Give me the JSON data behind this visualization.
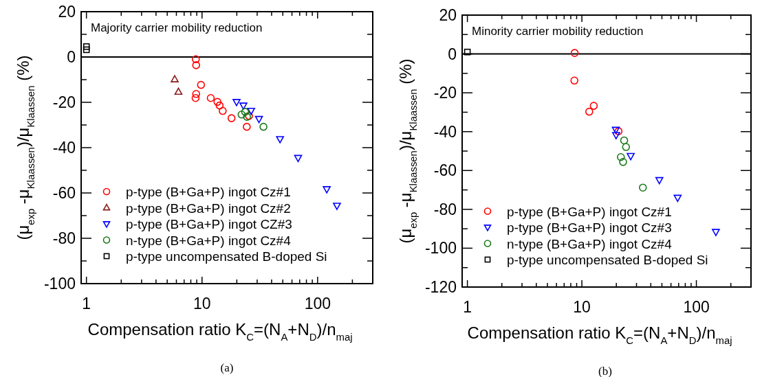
{
  "chart_data": [
    {
      "type": "scatter",
      "xlabel": "Compensation ratio K$_{C}$=(N$_{A}$+N$_{D}$)/n$_{maj}$",
      "ylabel": "(μ$_{exp}$ -μ$_{Klaassen}$)/μ$_{Klaassen}$ (%)",
      "annotations": [
        "Majority carrier mobility reduction",
        "(a)"
      ],
      "log": "x",
      "xlim": [
        0.9,
        300
      ],
      "ylim": [
        -100,
        20
      ],
      "xticks": [
        1,
        {
          "value": 2,
          "label": null
        },
        {
          "value": 3,
          "label": null
        },
        {
          "value": 4,
          "label": null
        },
        {
          "value": 5,
          "label": null
        },
        {
          "value": 6,
          "label": null
        },
        {
          "value": 7,
          "label": null
        },
        {
          "value": 8,
          "label": null
        },
        {
          "value": 9,
          "label": null
        },
        10,
        {
          "value": 20,
          "label": null
        },
        {
          "value": 30,
          "label": null
        },
        {
          "value": 40,
          "label": null
        },
        {
          "value": 50,
          "label": null
        },
        {
          "value": 60,
          "label": null
        },
        {
          "value": 70,
          "label": null
        },
        {
          "value": 80,
          "label": null
        },
        {
          "value": 90,
          "label": null
        },
        100,
        {
          "value": 200,
          "label": null
        }
      ],
      "yticks": [
        -100,
        {
          "value": -90,
          "label": null
        },
        -80,
        {
          "value": -70,
          "label": null
        },
        -60,
        {
          "value": -50,
          "label": null
        },
        -40,
        {
          "value": -30,
          "label": null
        },
        -20,
        {
          "value": -10,
          "label": null
        },
        0,
        {
          "value": 10,
          "label": null
        },
        20
      ],
      "ref_lines": [
        {
          "axis": "y",
          "value": 0,
          "color": "#000000"
        }
      ],
      "legend": "bottom left",
      "grid": false,
      "series": [
        {
          "name": "p-type (B+Ga+P) ingot Cz#1",
          "color": "#ff0000",
          "marker": "circle",
          "x": [
            8.84,
            8.9,
            9.8,
            8.9,
            8.8,
            11.9,
            13.6,
            14.2,
            15.1,
            18.0,
            24.4,
            25.5
          ],
          "values": [
            -1.0,
            -3.6,
            -12.3,
            -16.3,
            -18.1,
            -18.1,
            -19.8,
            -21.4,
            -23.8,
            -27.0,
            -30.8,
            -26.0
          ]
        },
        {
          "name": "p-type (B+Ga+P) ingot Cz#2",
          "color": "#8b1a1a",
          "marker": "triangle",
          "x": [
            5.8,
            6.25
          ],
          "values": [
            -9.9,
            -15.4
          ]
        },
        {
          "name": "p-type (B+Ga+P) ingot CZ#3",
          "color": "#0000ff",
          "marker": "triangle-down",
          "x": [
            19.9,
            22.8,
            26.6,
            31.1,
            47.3,
            67.8,
            120,
            147
          ],
          "values": [
            -19.8,
            -21.4,
            -23.7,
            -27.3,
            -36.2,
            -44.5,
            -58.3,
            -65.6
          ]
        },
        {
          "name": "n-type (B+Ga+P) ingot Cz#4",
          "color": "#1a7a1a",
          "marker": "circle",
          "x": [
            22.0,
            23.6,
            24.5,
            34.0
          ],
          "values": [
            -25.4,
            -24.2,
            -26.4,
            -30.8
          ]
        },
        {
          "name": "p-type uncompensated B-doped Si",
          "color": "#000000",
          "marker": "square",
          "x": [
            1.0,
            1.0
          ],
          "values": [
            4.6,
            3.2
          ]
        }
      ]
    },
    {
      "type": "scatter",
      "xlabel": "Compensation ratio K$_{C}$=(N$_{A}$+N$_{D}$)/n$_{maj}$",
      "ylabel": "(μ$_{exp}$ -μ$_{Klaassen}$)/μ$_{Klaassen}$ (%)",
      "annotations": [
        "Minority carrier mobility reduction",
        "(b)"
      ],
      "log": "x",
      "xlim": [
        0.9,
        300
      ],
      "ylim": [
        -120,
        20
      ],
      "xticks": [
        1,
        {
          "value": 2,
          "label": null
        },
        {
          "value": 3,
          "label": null
        },
        {
          "value": 4,
          "label": null
        },
        {
          "value": 5,
          "label": null
        },
        {
          "value": 6,
          "label": null
        },
        {
          "value": 7,
          "label": null
        },
        {
          "value": 8,
          "label": null
        },
        {
          "value": 9,
          "label": null
        },
        10,
        {
          "value": 20,
          "label": null
        },
        {
          "value": 30,
          "label": null
        },
        {
          "value": 40,
          "label": null
        },
        {
          "value": 50,
          "label": null
        },
        {
          "value": 60,
          "label": null
        },
        {
          "value": 70,
          "label": null
        },
        {
          "value": 80,
          "label": null
        },
        {
          "value": 90,
          "label": null
        },
        100,
        {
          "value": 200,
          "label": null
        }
      ],
      "yticks": [
        -120,
        {
          "value": -110,
          "label": null
        },
        -100,
        {
          "value": -90,
          "label": null
        },
        -80,
        {
          "value": -70,
          "label": null
        },
        -60,
        {
          "value": -50,
          "label": null
        },
        -40,
        {
          "value": -30,
          "label": null
        },
        -20,
        {
          "value": -10,
          "label": null
        },
        0,
        {
          "value": 10,
          "label": null
        },
        20
      ],
      "ref_lines": [
        {
          "axis": "y",
          "value": 0,
          "color": "#000000"
        }
      ],
      "legend": "bottom left",
      "grid": false,
      "series": [
        {
          "name": "p-type (B+Ga+P) ingot Cz#1",
          "color": "#ff0000",
          "marker": "circle",
          "x": [
            8.65,
            8.6,
            11.6,
            12.7,
            20.9
          ],
          "values": [
            0.5,
            -13.7,
            -29.7,
            -26.7,
            -39.8
          ]
        },
        {
          "name": "p-type (B+Ga+P) ingot Cz#3",
          "color": "#0000ff",
          "marker": "triangle-down",
          "x": [
            19.8,
            19.9,
            26.7,
            47.5,
            68.6,
            148
          ],
          "values": [
            -39.0,
            -41.7,
            -52.5,
            -64.9,
            -74.0,
            -91.6
          ]
        },
        {
          "name": "n-type (B+Ga+P) ingot Cz#4",
          "color": "#1a7a1a",
          "marker": "circle",
          "x": [
            23.4,
            24.3,
            21.9,
            22.9,
            34.1
          ],
          "values": [
            -44.5,
            -47.9,
            -53.1,
            -55.6,
            -68.8
          ]
        },
        {
          "name": "p-type uncompensated B-doped Si",
          "color": "#000000",
          "marker": "square",
          "x": [
            1.0
          ],
          "values": [
            1.0
          ]
        }
      ]
    }
  ]
}
